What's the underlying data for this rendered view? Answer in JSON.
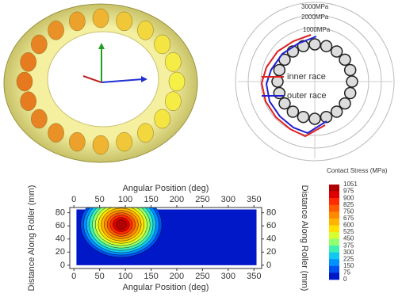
{
  "polar_plot": {
    "ring_labels": [
      "3000MPa",
      "2000MPa",
      "1000MPa"
    ],
    "legend": [
      {
        "name": "inner race",
        "color": "#e02020"
      },
      {
        "name": "outer race",
        "color": "#2020d0"
      }
    ]
  },
  "contour_plot": {
    "x_axis_label": "Angular Position (deg)",
    "y_axis_label": "Distance Along Roller (mm)",
    "xlim": [
      -8,
      365
    ],
    "ylim": [
      -5,
      88
    ],
    "xticks": [
      0,
      50,
      100,
      150,
      200,
      250,
      300,
      350
    ],
    "yticks": [
      0,
      20,
      40,
      60,
      80
    ]
  },
  "colorbar": {
    "title": "Contact Stress (MPa)",
    "levels": [
      1051,
      975,
      900,
      825,
      750,
      675,
      600,
      525,
      450,
      375,
      300,
      225,
      150,
      75,
      0
    ],
    "colors": [
      "#b00000",
      "#e00000",
      "#ff2a00",
      "#ff5a00",
      "#ff8a00",
      "#ffb400",
      "#ffe000",
      "#d8ff30",
      "#90ff70",
      "#40f0b0",
      "#10c8f0",
      "#0090ff",
      "#0050f0",
      "#0018c8"
    ]
  }
}
